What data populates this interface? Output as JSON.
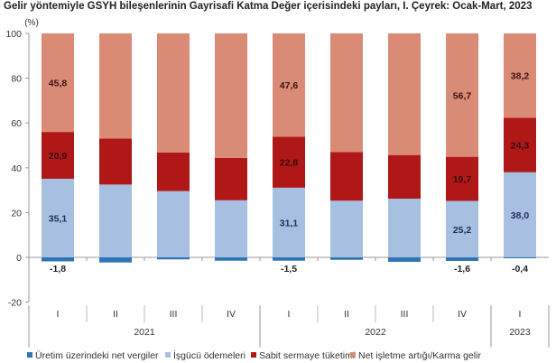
{
  "chart_data": {
    "type": "bar",
    "stacked": true,
    "title": "Gelir yöntemiyle GSYH bileşenlerinin Gayrisafi Katma Değer içerisindeki payları, I. Çeyrek: Ocak-Mart, 2023",
    "ylabel": "(%)",
    "ylim": [
      -20,
      100
    ],
    "yticks": [
      -20,
      0,
      20,
      40,
      60,
      80,
      100
    ],
    "grid": false,
    "legend_position": "bottom",
    "categories": [
      "I",
      "II",
      "III",
      "IV",
      "I",
      "II",
      "III",
      "IV",
      "I"
    ],
    "groups": [
      {
        "label": "2021",
        "span": 4
      },
      {
        "label": "2022",
        "span": 4
      },
      {
        "label": "2023",
        "span": 1
      }
    ],
    "series": [
      {
        "name": "Üretim üzerindeki net vergiler",
        "color": "#2e75b6",
        "values": [
          -1.8,
          -2.3,
          -0.9,
          -1.5,
          -1.5,
          -1.1,
          -2.0,
          -1.6,
          -0.4
        ],
        "labels": [
          "-1,8",
          "",
          "",
          "",
          "-1,5",
          "",
          "",
          "-1,6",
          "-0,4"
        ]
      },
      {
        "name": "İşgücü ödemeleri",
        "color": "#a7bfe1",
        "values": [
          35.1,
          32.5,
          29.6,
          25.5,
          31.1,
          25.3,
          26.2,
          25.2,
          38.0
        ],
        "labels": [
          "35,1",
          "",
          "",
          "",
          "31,1",
          "",
          "",
          "25,2",
          "38,0"
        ]
      },
      {
        "name": "Sabit sermaye tüketimi",
        "color": "#b01818",
        "values": [
          20.9,
          20.6,
          17.2,
          18.9,
          22.8,
          21.7,
          19.5,
          19.7,
          24.3
        ],
        "labels": [
          "20,9",
          "",
          "",
          "",
          "22,8",
          "",
          "",
          "19,7",
          "24,3"
        ]
      },
      {
        "name": "Net işletme artığı/Karma gelir",
        "color": "#d98b76",
        "values": [
          45.8,
          49.2,
          54.1,
          57.1,
          47.6,
          54.1,
          56.3,
          56.7,
          38.2
        ],
        "labels": [
          "45,8",
          "",
          "",
          "",
          "47,6",
          "",
          "",
          "56,7",
          "38,2"
        ]
      }
    ]
  }
}
